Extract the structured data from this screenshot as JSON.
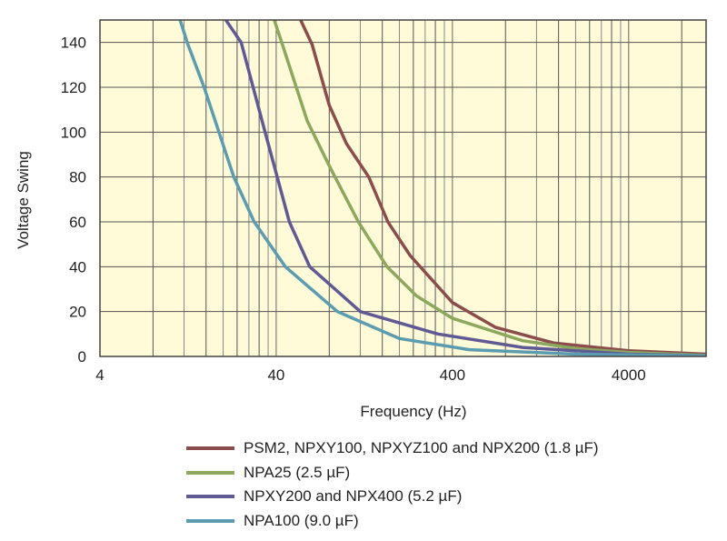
{
  "chart_data": {
    "type": "line",
    "title": "",
    "xlabel": "Frequency (Hz)",
    "ylabel": "Voltage Swing",
    "xscale": "log",
    "xlim": [
      4,
      11000
    ],
    "ylim": [
      0,
      150
    ],
    "xticks": [
      "4",
      "40",
      "400",
      "4000"
    ],
    "xtick_values": [
      4,
      40,
      400,
      4000
    ],
    "yticks": [
      "0",
      "20",
      "40",
      "60",
      "80",
      "100",
      "120",
      "140"
    ],
    "ytick_values": [
      0,
      20,
      40,
      60,
      80,
      100,
      120,
      140
    ],
    "grid": true,
    "legend_position": "bottom",
    "series": [
      {
        "name": "PSM2, NPXY100, NPXYZ100 and NPX200 (1.8 µF)",
        "color": "#8b4c4c",
        "points": [
          [
            55,
            150
          ],
          [
            64,
            139
          ],
          [
            80,
            112
          ],
          [
            100,
            95
          ],
          [
            134,
            80
          ],
          [
            172,
            60
          ],
          [
            230,
            45
          ],
          [
            400,
            24
          ],
          [
            700,
            13
          ],
          [
            1500,
            6
          ],
          [
            4000,
            2.5
          ],
          [
            11000,
            1
          ]
        ]
      },
      {
        "name": "NPA25 (2.5 µF)",
        "color": "#8ba85e",
        "points": [
          [
            39,
            150
          ],
          [
            43,
            140
          ],
          [
            60,
            105
          ],
          [
            80,
            85
          ],
          [
            117,
            60
          ],
          [
            170,
            40
          ],
          [
            250,
            27
          ],
          [
            400,
            17
          ],
          [
            1000,
            7
          ],
          [
            2000,
            3.5
          ],
          [
            4000,
            1.8
          ],
          [
            11000,
            0.5
          ]
        ]
      },
      {
        "name": "NPXY200 and NPX400 (5.2 µF)",
        "color": "#5f5a94",
        "points": [
          [
            20.7,
            150
          ],
          [
            25.3,
            140
          ],
          [
            34.6,
            100
          ],
          [
            47.5,
            60
          ],
          [
            62,
            40
          ],
          [
            120,
            20
          ],
          [
            330,
            10
          ],
          [
            1000,
            4
          ],
          [
            4000,
            1
          ],
          [
            11000,
            0.3
          ]
        ]
      },
      {
        "name": "NPA100 (9.0 µF)",
        "color": "#5b9cb0",
        "points": [
          [
            11.4,
            150
          ],
          [
            12.5,
            140
          ],
          [
            15.6,
            120
          ],
          [
            23,
            80
          ],
          [
            30,
            60
          ],
          [
            45,
            40
          ],
          [
            89,
            20
          ],
          [
            200,
            8
          ],
          [
            500,
            3
          ],
          [
            2000,
            1
          ],
          [
            11000,
            0.2
          ]
        ]
      }
    ]
  }
}
